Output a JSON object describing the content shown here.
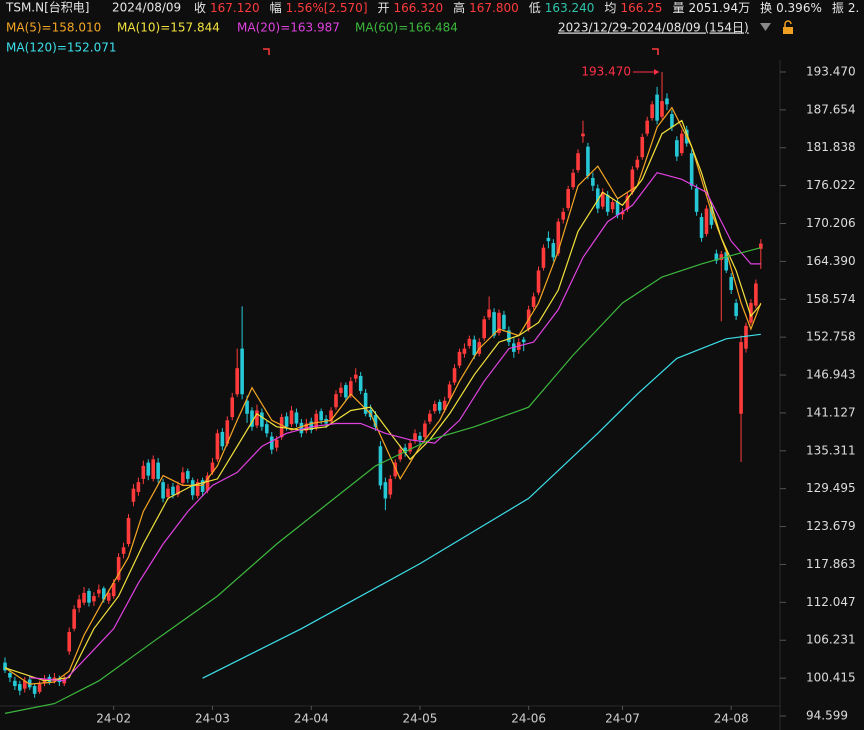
{
  "header": {
    "ticker": "TSM.N[台积电]",
    "date": "2024/08/09",
    "fields": [
      {
        "label": "收",
        "value": "167.120",
        "color": "#ff3b3b"
      },
      {
        "label": "幅",
        "value": "1.56%[2.570]",
        "color": "#ff3b3b"
      },
      {
        "label": "开",
        "value": "166.320",
        "color": "#ff3b3b"
      },
      {
        "label": "高",
        "value": "167.800",
        "color": "#ff3b3b"
      },
      {
        "label": "低",
        "value": "163.240",
        "color": "#2ec4a8"
      },
      {
        "label": "均",
        "value": "166.25",
        "color": "#ff3b3b"
      },
      {
        "label": "量",
        "value": "2051.94万",
        "color": "#e6e6e6"
      },
      {
        "label": "换",
        "value": "0.396%",
        "color": "#e6e6e6"
      },
      {
        "label": "振",
        "value": "2.",
        "color": "#e6e6e6"
      }
    ],
    "range": "2023/12/29-2024/08/09 (154日)"
  },
  "chart_data": {
    "type": "candlestick",
    "up_color": "#ff3b3b",
    "down_color": "#27c8d6",
    "ylim": [
      92.45,
      201.45
    ],
    "yticks": [
      {
        "value": 193.47,
        "label": "193.470"
      },
      187.654,
      181.838,
      176.022,
      170.206,
      {
        "value": 164.39,
        "label": "164.390"
      },
      158.574,
      152.758,
      146.943,
      141.127,
      135.311,
      129.495,
      123.679,
      117.863,
      112.047,
      106.231,
      100.415,
      94.599
    ],
    "xticks": [
      {
        "value": 22,
        "label": "24-02"
      },
      {
        "value": 42,
        "label": "24-03"
      },
      {
        "value": 62,
        "label": "24-04"
      },
      {
        "value": 84,
        "label": "24-05"
      },
      {
        "value": 106,
        "label": "24-06"
      },
      {
        "value": 125,
        "label": "24-07"
      },
      {
        "value": 147,
        "label": "24-08"
      }
    ],
    "max_annotation": {
      "value": 193.47,
      "label": "193.470"
    },
    "candles": [
      [
        102.8,
        103.6,
        101.2,
        101.6
      ],
      [
        101.2,
        101.8,
        99.8,
        100.5
      ],
      [
        100.0,
        100.6,
        98.6,
        99.2
      ],
      [
        99.5,
        100.0,
        97.8,
        98.5
      ],
      [
        98.8,
        100.6,
        98.2,
        100.0
      ],
      [
        100.2,
        100.8,
        98.6,
        99.0
      ],
      [
        99.2,
        99.6,
        97.4,
        98.0
      ],
      [
        98.3,
        100.0,
        98.0,
        99.5
      ],
      [
        99.6,
        100.9,
        99.2,
        100.2
      ],
      [
        100.6,
        101.0,
        99.4,
        99.8
      ],
      [
        99.9,
        101.2,
        99.6,
        100.5
      ],
      [
        100.4,
        100.8,
        99.2,
        99.8
      ],
      [
        99.6,
        100.8,
        99.2,
        100.3
      ],
      [
        104.5,
        108.2,
        104.0,
        107.5
      ],
      [
        108.0,
        111.6,
        107.6,
        111.0
      ],
      [
        111.2,
        113.2,
        110.5,
        112.5
      ],
      [
        112.0,
        114.4,
        111.6,
        113.5
      ],
      [
        113.8,
        114.2,
        111.4,
        112.0
      ],
      [
        112.2,
        113.6,
        111.5,
        113.0
      ],
      [
        113.4,
        114.8,
        112.8,
        114.0
      ],
      [
        114.2,
        114.5,
        112.0,
        112.5
      ],
      [
        112.3,
        114.0,
        111.8,
        113.5
      ],
      [
        113.0,
        115.6,
        112.6,
        115.0
      ],
      [
        115.5,
        119.6,
        115.2,
        119.0
      ],
      [
        119.5,
        121.2,
        118.8,
        120.5
      ],
      [
        121.0,
        125.6,
        120.6,
        125.0
      ],
      [
        127.5,
        130.2,
        126.8,
        129.5
      ],
      [
        129.0,
        131.2,
        128.4,
        130.5
      ],
      [
        131.0,
        133.8,
        130.2,
        133.0
      ],
      [
        133.5,
        134.0,
        130.8,
        131.5
      ],
      [
        131.0,
        134.6,
        130.6,
        134.0
      ],
      [
        133.5,
        134.2,
        130.4,
        131.0
      ],
      [
        130.5,
        131.0,
        127.4,
        128.0
      ],
      [
        128.2,
        130.2,
        127.8,
        129.5
      ],
      [
        129.8,
        130.4,
        128.0,
        128.5
      ],
      [
        128.6,
        130.6,
        128.2,
        130.0
      ],
      [
        130.4,
        132.8,
        130.0,
        132.0
      ],
      [
        132.2,
        132.6,
        130.4,
        131.0
      ],
      [
        130.8,
        131.2,
        127.8,
        128.5
      ],
      [
        128.4,
        131.0,
        128.0,
        130.5
      ],
      [
        130.8,
        131.2,
        128.4,
        129.0
      ],
      [
        129.2,
        132.0,
        128.8,
        131.5
      ],
      [
        132.0,
        134.2,
        131.6,
        133.5
      ],
      [
        134.0,
        138.6,
        133.6,
        138.0
      ],
      [
        138.2,
        138.8,
        135.4,
        136.0
      ],
      [
        136.4,
        140.6,
        136.0,
        140.0
      ],
      [
        140.5,
        144.2,
        140.0,
        143.5
      ],
      [
        144.0,
        151.0,
        143.6,
        148.0
      ],
      [
        151.0,
        157.5,
        143.2,
        144.0
      ],
      [
        143.0,
        143.8,
        139.6,
        141.0
      ],
      [
        141.5,
        142.0,
        138.4,
        139.0
      ],
      [
        139.2,
        142.4,
        138.8,
        141.5
      ],
      [
        141.2,
        141.8,
        138.4,
        139.0
      ],
      [
        139.4,
        140.0,
        137.4,
        138.0
      ],
      [
        137.5,
        138.2,
        134.8,
        135.5
      ],
      [
        135.8,
        137.6,
        135.2,
        137.0
      ],
      [
        137.4,
        141.0,
        137.0,
        140.5
      ],
      [
        140.6,
        141.2,
        138.4,
        139.0
      ],
      [
        139.4,
        142.2,
        139.0,
        141.5
      ],
      [
        141.2,
        141.8,
        139.0,
        139.5
      ],
      [
        139.6,
        140.2,
        137.4,
        138.0
      ],
      [
        138.4,
        140.2,
        138.0,
        139.5
      ],
      [
        139.8,
        140.4,
        138.0,
        138.5
      ],
      [
        138.8,
        141.6,
        138.4,
        141.0
      ],
      [
        141.4,
        141.8,
        139.4,
        140.0
      ],
      [
        140.2,
        140.8,
        138.8,
        139.5
      ],
      [
        139.8,
        142.0,
        139.4,
        141.5
      ],
      [
        142.0,
        144.6,
        141.6,
        144.0
      ],
      [
        144.2,
        145.8,
        143.6,
        145.0
      ],
      [
        145.4,
        145.8,
        143.0,
        143.5
      ],
      [
        143.8,
        146.6,
        143.4,
        146.0
      ],
      [
        146.4,
        148.0,
        145.8,
        147.0
      ],
      [
        146.8,
        147.4,
        144.0,
        144.5
      ],
      [
        144.2,
        144.8,
        140.6,
        141.0
      ],
      [
        141.6,
        142.4,
        140.0,
        140.5
      ],
      [
        140.8,
        141.4,
        138.4,
        139.0
      ],
      [
        136.0,
        136.8,
        129.4,
        130.0
      ],
      [
        130.5,
        131.2,
        126.2,
        128.0
      ],
      [
        128.6,
        131.6,
        128.0,
        131.0
      ],
      [
        131.4,
        134.0,
        131.0,
        133.5
      ],
      [
        134.0,
        136.2,
        133.6,
        135.5
      ],
      [
        135.8,
        136.4,
        134.4,
        135.0
      ],
      [
        135.2,
        137.0,
        134.8,
        136.5
      ],
      [
        136.8,
        138.6,
        136.4,
        138.0
      ],
      [
        137.6,
        138.2,
        136.2,
        137.0
      ],
      [
        137.4,
        140.0,
        137.0,
        139.5
      ],
      [
        139.8,
        141.6,
        139.4,
        141.0
      ],
      [
        141.4,
        143.0,
        141.0,
        142.5
      ],
      [
        142.8,
        143.2,
        141.0,
        141.5
      ],
      [
        141.6,
        143.6,
        141.2,
        143.0
      ],
      [
        143.4,
        146.0,
        143.0,
        145.5
      ],
      [
        145.8,
        148.6,
        145.4,
        148.0
      ],
      [
        148.4,
        151.0,
        148.0,
        150.5
      ],
      [
        150.2,
        151.8,
        149.6,
        151.0
      ],
      [
        151.4,
        153.0,
        151.0,
        152.5
      ],
      [
        152.4,
        153.0,
        149.4,
        150.0
      ],
      [
        150.2,
        152.6,
        149.8,
        152.0
      ],
      [
        152.6,
        156.0,
        152.2,
        155.5
      ],
      [
        155.8,
        159.0,
        155.4,
        157.0
      ],
      [
        156.6,
        157.2,
        152.6,
        153.0
      ],
      [
        153.4,
        157.0,
        153.0,
        156.5
      ],
      [
        156.2,
        156.8,
        153.6,
        154.0
      ],
      [
        153.8,
        154.4,
        151.4,
        152.0
      ],
      [
        151.8,
        152.6,
        149.6,
        150.5
      ],
      [
        150.8,
        152.6,
        150.2,
        152.0
      ],
      [
        152.4,
        152.8,
        150.6,
        152.0
      ],
      [
        154.0,
        157.6,
        153.6,
        157.0
      ],
      [
        157.4,
        159.6,
        157.0,
        159.0
      ],
      [
        159.6,
        163.6,
        159.2,
        163.0
      ],
      [
        163.4,
        167.0,
        163.0,
        166.5
      ],
      [
        168.0,
        169.0,
        166.4,
        167.5
      ],
      [
        167.2,
        167.8,
        164.4,
        165.0
      ],
      [
        165.6,
        171.0,
        165.2,
        170.5
      ],
      [
        170.8,
        172.6,
        170.2,
        172.0
      ],
      [
        172.6,
        176.0,
        172.2,
        175.5
      ],
      [
        175.8,
        178.6,
        175.4,
        178.0
      ],
      [
        178.4,
        181.6,
        178.0,
        181.0
      ],
      [
        183.6,
        186.0,
        182.6,
        184.0
      ],
      [
        182.0,
        182.6,
        177.0,
        177.5
      ],
      [
        177.2,
        178.0,
        175.2,
        176.0
      ],
      [
        175.6,
        176.2,
        171.8,
        172.5
      ],
      [
        172.8,
        175.6,
        172.4,
        175.0
      ],
      [
        174.6,
        175.2,
        171.4,
        172.0
      ],
      [
        172.4,
        174.0,
        171.8,
        173.5
      ],
      [
        173.6,
        174.2,
        171.0,
        171.5
      ],
      [
        171.6,
        172.6,
        170.8,
        172.0
      ],
      [
        172.4,
        175.0,
        172.0,
        174.5
      ],
      [
        175.0,
        179.0,
        174.6,
        178.5
      ],
      [
        178.8,
        180.6,
        178.4,
        180.0
      ],
      [
        180.4,
        184.0,
        180.0,
        183.5
      ],
      [
        184.0,
        186.6,
        183.6,
        186.0
      ],
      [
        186.4,
        189.0,
        186.0,
        188.5
      ],
      [
        190.0,
        191.2,
        185.4,
        186.0
      ],
      [
        186.6,
        193.47,
        186.2,
        189.0
      ],
      [
        189.4,
        190.2,
        187.6,
        188.5
      ],
      [
        187.0,
        187.6,
        184.4,
        185.0
      ],
      [
        183.0,
        183.6,
        179.8,
        180.5
      ],
      [
        181.0,
        184.6,
        180.6,
        184.0
      ],
      [
        184.6,
        185.2,
        182.0,
        182.5
      ],
      [
        181.0,
        181.6,
        175.4,
        176.0
      ],
      [
        175.6,
        176.2,
        171.4,
        172.0
      ],
      [
        171.2,
        171.8,
        167.4,
        168.0
      ],
      [
        168.6,
        173.0,
        168.2,
        172.5
      ],
      [
        172.8,
        173.4,
        169.4,
        170.0
      ],
      [
        165.6,
        166.2,
        164.0,
        164.5
      ],
      [
        164.6,
        166.0,
        155.2,
        165.5
      ],
      [
        165.8,
        166.4,
        162.6,
        163.0
      ],
      [
        162.0,
        162.6,
        159.4,
        160.0
      ],
      [
        158.0,
        158.6,
        155.4,
        156.0
      ],
      [
        141.0,
        153.0,
        133.6,
        152.0
      ],
      [
        151.0,
        155.0,
        150.4,
        154.5
      ],
      [
        155.0,
        158.6,
        154.6,
        158.0
      ],
      [
        157.6,
        161.6,
        157.2,
        161.0
      ],
      [
        166.32,
        167.8,
        163.24,
        167.12
      ]
    ],
    "series": [
      {
        "name": "MA(5)=158.010",
        "color": "#f5a623",
        "x": [
          0,
          5,
          10,
          13,
          16,
          20,
          25,
          28,
          32,
          36,
          40,
          43,
          47,
          50,
          54,
          58,
          62,
          66,
          70,
          74,
          77,
          80,
          84,
          88,
          92,
          96,
          100,
          104,
          108,
          112,
          116,
          120,
          124,
          128,
          132,
          135,
          139,
          143,
          146,
          149,
          151,
          153
        ],
        "values": [
          102,
          99.5,
          99.8,
          101.5,
          107,
          112.5,
          119,
          126,
          131.5,
          130,
          130,
          133,
          140,
          145,
          140,
          138.5,
          139.5,
          140,
          144,
          141,
          136,
          131,
          136,
          140,
          146,
          151,
          154,
          153,
          158,
          166,
          176,
          179,
          174,
          176,
          185,
          188,
          182,
          172,
          166,
          158,
          154,
          158
        ]
      },
      {
        "name": "MA(10)=157.844",
        "color": "#f2e23c",
        "x": [
          0,
          8,
          13,
          18,
          23,
          28,
          33,
          38,
          43,
          47,
          51,
          55,
          60,
          65,
          70,
          74,
          78,
          82,
          86,
          90,
          95,
          100,
          104,
          108,
          112,
          116,
          121,
          125,
          129,
          133,
          137,
          141,
          145,
          148,
          151,
          153
        ],
        "values": [
          102,
          100,
          100.5,
          108,
          113,
          121,
          128,
          130,
          131,
          136,
          141,
          139,
          138.5,
          139,
          141.5,
          142,
          138,
          134,
          137,
          141,
          147,
          152,
          153,
          155,
          160,
          169,
          175,
          173,
          177,
          184,
          186,
          178,
          168,
          163,
          156,
          157.8
        ]
      },
      {
        "name": "MA(20)=163.987",
        "color": "#e042e0",
        "x": [
          5,
          12,
          17,
          22,
          27,
          32,
          37,
          42,
          47,
          52,
          57,
          62,
          67,
          72,
          77,
          82,
          87,
          92,
          97,
          102,
          107,
          112,
          117,
          122,
          127,
          132,
          137,
          142,
          147,
          151,
          153
        ],
        "values": [
          100.5,
          100,
          104,
          108,
          115,
          121,
          126,
          130,
          132,
          136,
          138,
          139,
          139.5,
          139.5,
          138,
          137,
          136.5,
          140,
          146,
          151,
          152,
          157,
          165,
          170.5,
          173,
          178,
          177,
          175,
          167.5,
          164,
          164
        ]
      },
      {
        "name": "MA(60)=166.484",
        "color": "#3cb83c",
        "x": [
          0,
          10,
          19,
          30,
          43,
          55,
          65,
          75,
          86,
          95,
          106,
          115,
          125,
          133,
          141,
          148,
          153
        ],
        "values": [
          95,
          96.5,
          100,
          106,
          113,
          121,
          127,
          133,
          137,
          139,
          142,
          150,
          158,
          162,
          164,
          165.5,
          166.5
        ]
      },
      {
        "name": "MA(120)=152.071",
        "color": "#3de0ea",
        "x": [
          40,
          60,
          84,
          106,
          120,
          128,
          136,
          141,
          146,
          153
        ],
        "values": [
          100.4,
          108,
          118,
          128,
          138,
          144,
          149.5,
          151,
          152.5,
          153.2
        ]
      }
    ]
  }
}
